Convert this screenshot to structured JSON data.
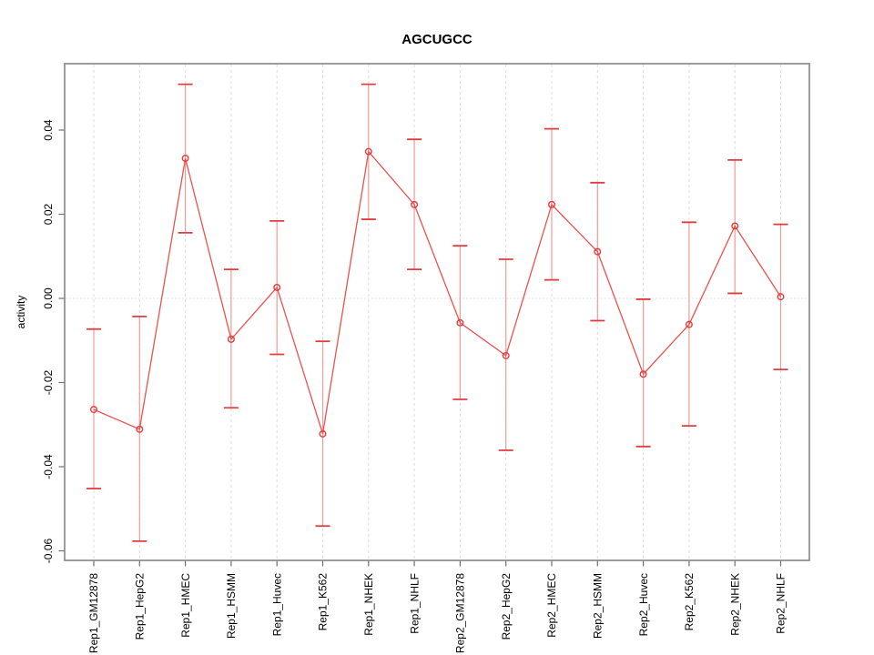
{
  "chart_data": {
    "type": "line",
    "title": "AGCUGCC",
    "xlabel": "",
    "ylabel": "activity",
    "categories": [
      "Rep1_GM12878",
      "Rep1_HepG2",
      "Rep1_HMEC",
      "Rep1_HSMM",
      "Rep1_Huvec",
      "Rep1_K562",
      "Rep1_NHEK",
      "Rep1_NHLF",
      "Rep2_GM12878",
      "Rep2_HepG2",
      "Rep2_HMEC",
      "Rep2_HSMM",
      "Rep2_Huvec",
      "Rep2_K562",
      "Rep2_NHEK",
      "Rep2_NHLF"
    ],
    "series": [
      {
        "name": "activity",
        "values": [
          -0.0264,
          -0.0311,
          0.0333,
          -0.0097,
          0.0026,
          -0.0322,
          0.0349,
          0.0223,
          -0.0058,
          -0.0136,
          0.0223,
          0.0111,
          -0.018,
          -0.0062,
          0.0172,
          0.0004
        ],
        "error_low": [
          -0.0452,
          -0.0577,
          0.0156,
          -0.026,
          -0.0133,
          -0.0541,
          0.0188,
          0.0069,
          -0.024,
          -0.0361,
          0.0044,
          -0.0053,
          -0.0352,
          -0.0303,
          0.0012,
          -0.0169
        ],
        "error_high": [
          -0.0073,
          -0.0043,
          0.0509,
          0.0069,
          0.0184,
          -0.0102,
          0.0509,
          0.0378,
          0.0125,
          0.0093,
          0.0403,
          0.0275,
          -0.0002,
          0.0181,
          0.0329,
          0.0176
        ]
      }
    ],
    "ylim": [
      -0.0623,
      0.0558
    ],
    "yticks": [
      0.04,
      0.02,
      0.0,
      -0.02,
      -0.04,
      -0.06
    ],
    "ytick_labels": [
      "0.04",
      "0.02",
      "0.00",
      "-0.02",
      "-0.04",
      "-0.06"
    ],
    "grid": {
      "vertical_dashed_at_each_category": true,
      "horizontal_dotted_at_zero": true
    },
    "legend": "none",
    "marker": "open-circle",
    "colors": {
      "series_line": "#e9524e",
      "marker_stroke": "#e23d3d",
      "errorbar_stem": "#f29b99",
      "errorbar_cap": "#e23d3d",
      "gridline": "#dcdcdc",
      "axis_box": "#8b8b8b",
      "tick": "#6e6e6e",
      "text": "#000000",
      "background": "#ffffff"
    }
  }
}
